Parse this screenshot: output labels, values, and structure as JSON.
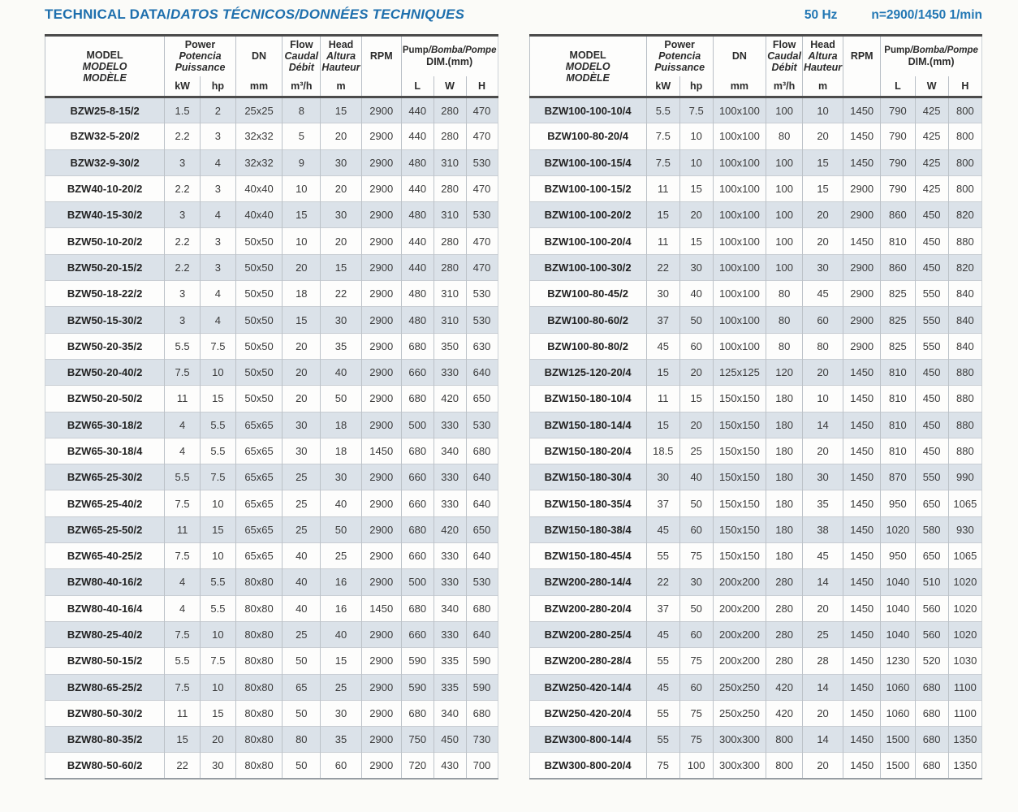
{
  "page": {
    "title_main": "TECHNICAL DATA/",
    "title_rest": "DATOS TÉCNICOS/DONNÉES TECHNIQUES",
    "frequency": "50 Hz",
    "speed": "n=2900/1450 1/min"
  },
  "colors": {
    "accent_blue": "#1e6fad",
    "row_shade": "#dbe2e9",
    "header_rule": "#4b4b4b"
  },
  "header": {
    "model": [
      "MODEL",
      "MODELO",
      "MODÈLE"
    ],
    "power": [
      "Power",
      "Potencia",
      "Puissance"
    ],
    "kw": "kW",
    "hp": "hp",
    "dn": "DN",
    "mm": "mm",
    "flow": [
      "Flow",
      "Caudal",
      "Débit"
    ],
    "flow_unit": "m³/h",
    "head": [
      "Head",
      "Altura",
      "Hauteur"
    ],
    "head_unit": "m",
    "rpm": "RPM",
    "dim_line1_a": "Pump",
    "dim_line1_b": "/Bomba/Pompe",
    "dim_line2": "DIM.(mm)",
    "l": "L",
    "w": "W",
    "h": "H"
  },
  "tables": {
    "left": {
      "rows": [
        [
          "BZW25-8-15/2",
          "1.5",
          "2",
          "25x25",
          "8",
          "15",
          "2900",
          "440",
          "280",
          "470"
        ],
        [
          "BZW32-5-20/2",
          "2.2",
          "3",
          "32x32",
          "5",
          "20",
          "2900",
          "440",
          "280",
          "470"
        ],
        [
          "BZW32-9-30/2",
          "3",
          "4",
          "32x32",
          "9",
          "30",
          "2900",
          "480",
          "310",
          "530"
        ],
        [
          "BZW40-10-20/2",
          "2.2",
          "3",
          "40x40",
          "10",
          "20",
          "2900",
          "440",
          "280",
          "470"
        ],
        [
          "BZW40-15-30/2",
          "3",
          "4",
          "40x40",
          "15",
          "30",
          "2900",
          "480",
          "310",
          "530"
        ],
        [
          "BZW50-10-20/2",
          "2.2",
          "3",
          "50x50",
          "10",
          "20",
          "2900",
          "440",
          "280",
          "470"
        ],
        [
          "BZW50-20-15/2",
          "2.2",
          "3",
          "50x50",
          "20",
          "15",
          "2900",
          "440",
          "280",
          "470"
        ],
        [
          "BZW50-18-22/2",
          "3",
          "4",
          "50x50",
          "18",
          "22",
          "2900",
          "480",
          "310",
          "530"
        ],
        [
          "BZW50-15-30/2",
          "3",
          "4",
          "50x50",
          "15",
          "30",
          "2900",
          "480",
          "310",
          "530"
        ],
        [
          "BZW50-20-35/2",
          "5.5",
          "7.5",
          "50x50",
          "20",
          "35",
          "2900",
          "680",
          "350",
          "630"
        ],
        [
          "BZW50-20-40/2",
          "7.5",
          "10",
          "50x50",
          "20",
          "40",
          "2900",
          "660",
          "330",
          "640"
        ],
        [
          "BZW50-20-50/2",
          "11",
          "15",
          "50x50",
          "20",
          "50",
          "2900",
          "680",
          "420",
          "650"
        ],
        [
          "BZW65-30-18/2",
          "4",
          "5.5",
          "65x65",
          "30",
          "18",
          "2900",
          "500",
          "330",
          "530"
        ],
        [
          "BZW65-30-18/4",
          "4",
          "5.5",
          "65x65",
          "30",
          "18",
          "1450",
          "680",
          "340",
          "680"
        ],
        [
          "BZW65-25-30/2",
          "5.5",
          "7.5",
          "65x65",
          "25",
          "30",
          "2900",
          "660",
          "330",
          "640"
        ],
        [
          "BZW65-25-40/2",
          "7.5",
          "10",
          "65x65",
          "25",
          "40",
          "2900",
          "660",
          "330",
          "640"
        ],
        [
          "BZW65-25-50/2",
          "11",
          "15",
          "65x65",
          "25",
          "50",
          "2900",
          "680",
          "420",
          "650"
        ],
        [
          "BZW65-40-25/2",
          "7.5",
          "10",
          "65x65",
          "40",
          "25",
          "2900",
          "660",
          "330",
          "640"
        ],
        [
          "BZW80-40-16/2",
          "4",
          "5.5",
          "80x80",
          "40",
          "16",
          "2900",
          "500",
          "330",
          "530"
        ],
        [
          "BZW80-40-16/4",
          "4",
          "5.5",
          "80x80",
          "40",
          "16",
          "1450",
          "680",
          "340",
          "680"
        ],
        [
          "BZW80-25-40/2",
          "7.5",
          "10",
          "80x80",
          "25",
          "40",
          "2900",
          "660",
          "330",
          "640"
        ],
        [
          "BZW80-50-15/2",
          "5.5",
          "7.5",
          "80x80",
          "50",
          "15",
          "2900",
          "590",
          "335",
          "590"
        ],
        [
          "BZW80-65-25/2",
          "7.5",
          "10",
          "80x80",
          "65",
          "25",
          "2900",
          "590",
          "335",
          "590"
        ],
        [
          "BZW80-50-30/2",
          "11",
          "15",
          "80x80",
          "50",
          "30",
          "2900",
          "680",
          "340",
          "680"
        ],
        [
          "BZW80-80-35/2",
          "15",
          "20",
          "80x80",
          "80",
          "35",
          "2900",
          "750",
          "450",
          "730"
        ],
        [
          "BZW80-50-60/2",
          "22",
          "30",
          "80x80",
          "50",
          "60",
          "2900",
          "720",
          "430",
          "700"
        ]
      ]
    },
    "right": {
      "rows": [
        [
          "BZW100-100-10/4",
          "5.5",
          "7.5",
          "100x100",
          "100",
          "10",
          "1450",
          "790",
          "425",
          "800"
        ],
        [
          "BZW100-80-20/4",
          "7.5",
          "10",
          "100x100",
          "80",
          "20",
          "1450",
          "790",
          "425",
          "800"
        ],
        [
          "BZW100-100-15/4",
          "7.5",
          "10",
          "100x100",
          "100",
          "15",
          "1450",
          "790",
          "425",
          "800"
        ],
        [
          "BZW100-100-15/2",
          "11",
          "15",
          "100x100",
          "100",
          "15",
          "2900",
          "790",
          "425",
          "800"
        ],
        [
          "BZW100-100-20/2",
          "15",
          "20",
          "100x100",
          "100",
          "20",
          "2900",
          "860",
          "450",
          "820"
        ],
        [
          "BZW100-100-20/4",
          "11",
          "15",
          "100x100",
          "100",
          "20",
          "1450",
          "810",
          "450",
          "880"
        ],
        [
          "BZW100-100-30/2",
          "22",
          "30",
          "100x100",
          "100",
          "30",
          "2900",
          "860",
          "450",
          "820"
        ],
        [
          "BZW100-80-45/2",
          "30",
          "40",
          "100x100",
          "80",
          "45",
          "2900",
          "825",
          "550",
          "840"
        ],
        [
          "BZW100-80-60/2",
          "37",
          "50",
          "100x100",
          "80",
          "60",
          "2900",
          "825",
          "550",
          "840"
        ],
        [
          "BZW100-80-80/2",
          "45",
          "60",
          "100x100",
          "80",
          "80",
          "2900",
          "825",
          "550",
          "840"
        ],
        [
          "BZW125-120-20/4",
          "15",
          "20",
          "125x125",
          "120",
          "20",
          "1450",
          "810",
          "450",
          "880"
        ],
        [
          "BZW150-180-10/4",
          "11",
          "15",
          "150x150",
          "180",
          "10",
          "1450",
          "810",
          "450",
          "880"
        ],
        [
          "BZW150-180-14/4",
          "15",
          "20",
          "150x150",
          "180",
          "14",
          "1450",
          "810",
          "450",
          "880"
        ],
        [
          "BZW150-180-20/4",
          "18.5",
          "25",
          "150x150",
          "180",
          "20",
          "1450",
          "810",
          "450",
          "880"
        ],
        [
          "BZW150-180-30/4",
          "30",
          "40",
          "150x150",
          "180",
          "30",
          "1450",
          "870",
          "550",
          "990"
        ],
        [
          "BZW150-180-35/4",
          "37",
          "50",
          "150x150",
          "180",
          "35",
          "1450",
          "950",
          "650",
          "1065"
        ],
        [
          "BZW150-180-38/4",
          "45",
          "60",
          "150x150",
          "180",
          "38",
          "1450",
          "1020",
          "580",
          "930"
        ],
        [
          "BZW150-180-45/4",
          "55",
          "75",
          "150x150",
          "180",
          "45",
          "1450",
          "950",
          "650",
          "1065"
        ],
        [
          "BZW200-280-14/4",
          "22",
          "30",
          "200x200",
          "280",
          "14",
          "1450",
          "1040",
          "510",
          "1020"
        ],
        [
          "BZW200-280-20/4",
          "37",
          "50",
          "200x200",
          "280",
          "20",
          "1450",
          "1040",
          "560",
          "1020"
        ],
        [
          "BZW200-280-25/4",
          "45",
          "60",
          "200x200",
          "280",
          "25",
          "1450",
          "1040",
          "560",
          "1020"
        ],
        [
          "BZW200-280-28/4",
          "55",
          "75",
          "200x200",
          "280",
          "28",
          "1450",
          "1230",
          "520",
          "1030"
        ],
        [
          "BZW250-420-14/4",
          "45",
          "60",
          "250x250",
          "420",
          "14",
          "1450",
          "1060",
          "680",
          "1100"
        ],
        [
          "BZW250-420-20/4",
          "55",
          "75",
          "250x250",
          "420",
          "20",
          "1450",
          "1060",
          "680",
          "1100"
        ],
        [
          "BZW300-800-14/4",
          "55",
          "75",
          "300x300",
          "800",
          "14",
          "1450",
          "1500",
          "680",
          "1350"
        ],
        [
          "BZW300-800-20/4",
          "75",
          "100",
          "300x300",
          "800",
          "20",
          "1450",
          "1500",
          "680",
          "1350"
        ]
      ]
    }
  }
}
